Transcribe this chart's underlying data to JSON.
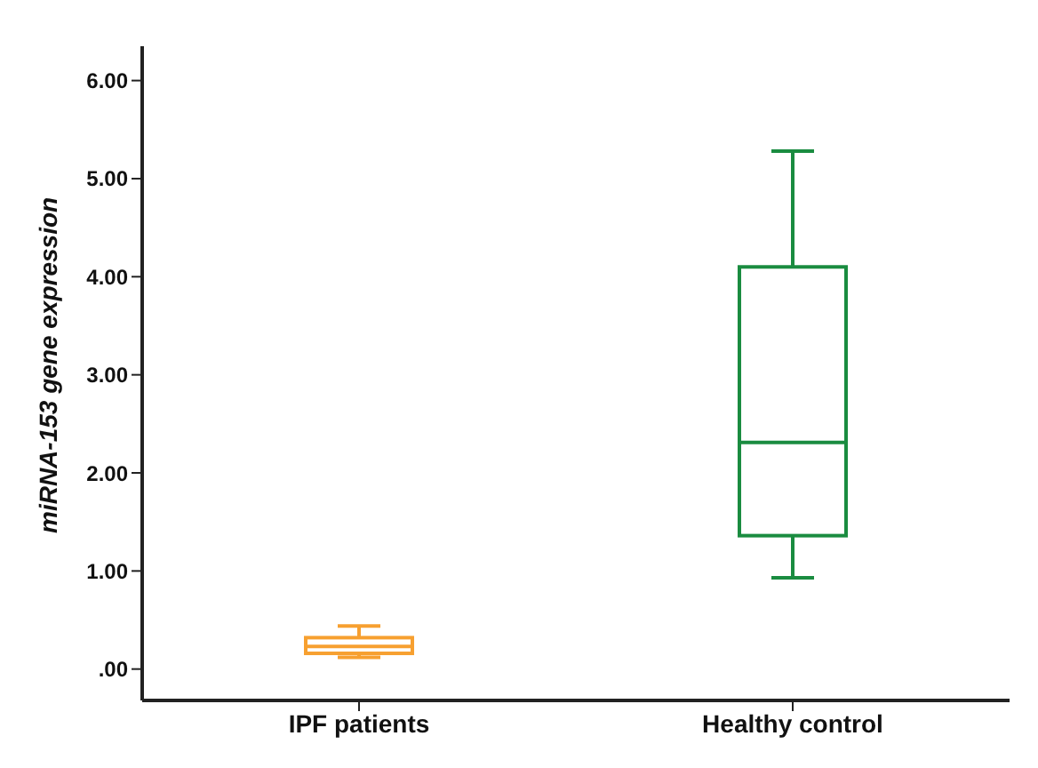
{
  "chart_data": {
    "type": "box",
    "ylabel": "miRNA-153 gene expression",
    "categories": [
      "IPF patients",
      "Healthy control"
    ],
    "colors": [
      "#f7a030",
      "#1a8c40"
    ],
    "boxes": [
      {
        "low": 0.12,
        "q1": 0.16,
        "median": 0.23,
        "q3": 0.32,
        "high": 0.44
      },
      {
        "low": 0.93,
        "q1": 1.36,
        "median": 2.31,
        "q3": 4.1,
        "high": 5.28
      }
    ],
    "ylim": [
      -0.32,
      6.35
    ],
    "yticks": [
      {
        "value": 0,
        "label": ".00"
      },
      {
        "value": 1,
        "label": "1.00"
      },
      {
        "value": 2,
        "label": "2.00"
      },
      {
        "value": 3,
        "label": "3.00"
      },
      {
        "value": 4,
        "label": "4.00"
      },
      {
        "value": 5,
        "label": "5.00"
      },
      {
        "value": 6,
        "label": "6.00"
      }
    ],
    "grid": false,
    "legend": false
  }
}
